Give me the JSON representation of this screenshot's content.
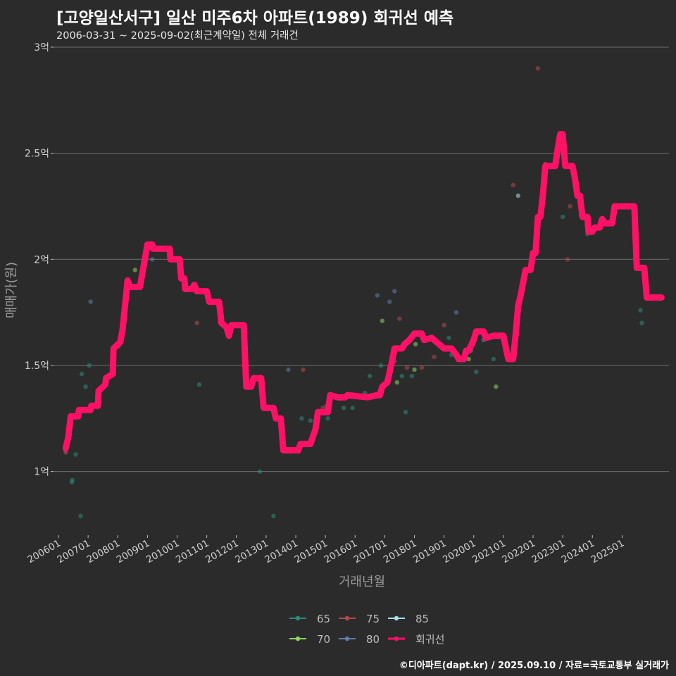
{
  "header": {
    "title": "[고양일산서구] 일산 미주6차 아파트(1989) 회귀선 예측",
    "subtitle": "2006-03-31 ~ 2025-09-02(최근계약일) 전체 거래건"
  },
  "footer": {
    "credit": "©디아파트(dapt.kr) / 2025.09.10 / 자료=국토교통부 실거래가"
  },
  "chart_data": {
    "type": "scatter",
    "xlabel": "거래년월",
    "ylabel": "매매가(원)",
    "ylim": [
      0.7,
      3.0
    ],
    "xlim": [
      "2005-11-01",
      "2026-08-01"
    ],
    "y_ticks": [
      {
        "value": 1.0,
        "label": "1억"
      },
      {
        "value": 1.5,
        "label": "1.5억"
      },
      {
        "value": 2.0,
        "label": "2억"
      },
      {
        "value": 2.5,
        "label": "2.5억"
      },
      {
        "value": 3.0,
        "label": "3억"
      }
    ],
    "x_ticks": [
      {
        "date": "2006-01-01",
        "label": "200601"
      },
      {
        "date": "2007-01-01",
        "label": "200701"
      },
      {
        "date": "2008-01-01",
        "label": "200801"
      },
      {
        "date": "2009-01-01",
        "label": "200901"
      },
      {
        "date": "2010-01-01",
        "label": "201001"
      },
      {
        "date": "2011-01-01",
        "label": "201101"
      },
      {
        "date": "2012-01-01",
        "label": "201201"
      },
      {
        "date": "2013-01-01",
        "label": "201301"
      },
      {
        "date": "2014-01-01",
        "label": "201401"
      },
      {
        "date": "2015-01-01",
        "label": "201501"
      },
      {
        "date": "2016-01-01",
        "label": "201601"
      },
      {
        "date": "2017-01-01",
        "label": "201701"
      },
      {
        "date": "2018-01-01",
        "label": "201801"
      },
      {
        "date": "2019-01-01",
        "label": "201901"
      },
      {
        "date": "2020-01-01",
        "label": "202001"
      },
      {
        "date": "2021-01-01",
        "label": "202101"
      },
      {
        "date": "2022-01-01",
        "label": "202201"
      },
      {
        "date": "2023-01-01",
        "label": "202301"
      },
      {
        "date": "2024-01-01",
        "label": "202401"
      },
      {
        "date": "2025-01-01",
        "label": "202501"
      }
    ],
    "grid": true,
    "legend_position": "bottom",
    "series": [
      {
        "name": "65",
        "color": "#2e8b7a",
        "points": [
          [
            "2006-06-15",
            0.95
          ],
          [
            "2006-06-20",
            0.96
          ],
          [
            "2006-08-01",
            1.08
          ],
          [
            "2006-10-01",
            0.79
          ],
          [
            "2006-10-15",
            1.46
          ],
          [
            "2006-12-01",
            1.4
          ],
          [
            "2007-01-15",
            1.5
          ],
          [
            "2008-01-10",
            1.59
          ],
          [
            "2010-10-01",
            1.41
          ],
          [
            "2012-10-15",
            1.0
          ],
          [
            "2013-04-01",
            0.79
          ],
          [
            "2014-03-15",
            1.25
          ],
          [
            "2014-07-01",
            1.24
          ],
          [
            "2014-10-01",
            1.28
          ],
          [
            "2014-10-10",
            1.27
          ],
          [
            "2015-02-01",
            1.25
          ],
          [
            "2015-08-15",
            1.3
          ],
          [
            "2015-12-01",
            1.3
          ],
          [
            "2016-05-01",
            1.37
          ],
          [
            "2016-07-01",
            1.45
          ],
          [
            "2016-11-15",
            1.5
          ],
          [
            "2017-05-01",
            1.52
          ],
          [
            "2017-08-01",
            1.45
          ],
          [
            "2017-09-15",
            1.28
          ],
          [
            "2017-12-01",
            1.45
          ],
          [
            "2019-03-01",
            1.63
          ],
          [
            "2019-04-01",
            1.55
          ],
          [
            "2019-12-01",
            1.57
          ],
          [
            "2020-02-01",
            1.47
          ],
          [
            "2020-09-01",
            1.53
          ],
          [
            "2023-01-01",
            2.2
          ],
          [
            "2023-11-01",
            2.12
          ],
          [
            "2025-09-01",
            1.7
          ],
          [
            "2025-08-15",
            1.76
          ]
        ]
      },
      {
        "name": "70",
        "color": "#8fd35f",
        "points": [
          [
            "2008-08-01",
            1.95
          ],
          [
            "2016-12-01",
            1.71
          ],
          [
            "2017-06-01",
            1.42
          ],
          [
            "2018-01-01",
            1.48
          ],
          [
            "2018-01-15",
            1.6
          ],
          [
            "2019-11-01",
            1.53
          ],
          [
            "2020-10-01",
            1.4
          ]
        ]
      },
      {
        "name": "75",
        "color": "#b24a4a",
        "points": [
          [
            "2006-03-31",
            1.1
          ],
          [
            "2006-04-01",
            1.09
          ],
          [
            "2010-09-01",
            1.7
          ],
          [
            "2012-05-01",
            1.49
          ],
          [
            "2014-04-01",
            1.48
          ],
          [
            "2014-12-01",
            1.3
          ],
          [
            "2015-01-15",
            1.31
          ],
          [
            "2017-07-01",
            1.72
          ],
          [
            "2017-10-01",
            1.49
          ],
          [
            "2018-04-01",
            1.49
          ],
          [
            "2018-09-01",
            1.54
          ],
          [
            "2019-01-01",
            1.69
          ],
          [
            "2021-05-01",
            2.35
          ],
          [
            "2022-03-01",
            2.9
          ],
          [
            "2022-06-01",
            2.45
          ],
          [
            "2023-03-01",
            2.0
          ],
          [
            "2023-04-01",
            2.25
          ]
        ]
      },
      {
        "name": "80",
        "color": "#5c7fa8",
        "points": [
          [
            "2007-02-01",
            1.8
          ],
          [
            "2009-03-01",
            2.0
          ],
          [
            "2013-10-01",
            1.48
          ],
          [
            "2016-10-01",
            1.83
          ],
          [
            "2017-03-01",
            1.8
          ],
          [
            "2017-05-01",
            1.85
          ],
          [
            "2019-06-01",
            1.75
          ],
          [
            "2020-05-01",
            1.62
          ]
        ]
      },
      {
        "name": "85",
        "color": "#a8dde6",
        "points": [
          [
            "2021-07-01",
            2.3
          ]
        ]
      }
    ],
    "regression": {
      "name": "회귀선",
      "color": "#ff1166",
      "points": [
        [
          "2006-03-31",
          1.11
        ],
        [
          "2006-05-01",
          1.16
        ],
        [
          "2006-06-01",
          1.26
        ],
        [
          "2006-09-01",
          1.26
        ],
        [
          "2006-09-10",
          1.29
        ],
        [
          "2007-02-01",
          1.29
        ],
        [
          "2007-02-10",
          1.31
        ],
        [
          "2007-05-01",
          1.31
        ],
        [
          "2007-05-10",
          1.38
        ],
        [
          "2007-08-01",
          1.41
        ],
        [
          "2007-08-10",
          1.44
        ],
        [
          "2007-11-01",
          1.46
        ],
        [
          "2007-11-10",
          1.58
        ],
        [
          "2008-02-01",
          1.61
        ],
        [
          "2008-03-01",
          1.67
        ],
        [
          "2008-05-01",
          1.9
        ],
        [
          "2008-06-01",
          1.87
        ],
        [
          "2008-10-01",
          1.87
        ],
        [
          "2009-01-01",
          2.07
        ],
        [
          "2009-03-01",
          2.07
        ],
        [
          "2009-03-10",
          2.05
        ],
        [
          "2009-10-01",
          2.05
        ],
        [
          "2009-10-10",
          2.0
        ],
        [
          "2010-02-01",
          2.0
        ],
        [
          "2010-02-20",
          1.91
        ],
        [
          "2010-04-01",
          1.91
        ],
        [
          "2010-04-10",
          1.86
        ],
        [
          "2010-07-01",
          1.86
        ],
        [
          "2010-08-01",
          1.88
        ],
        [
          "2010-09-01",
          1.85
        ],
        [
          "2011-01-01",
          1.85
        ],
        [
          "2011-02-01",
          1.8
        ],
        [
          "2011-06-01",
          1.8
        ],
        [
          "2011-07-01",
          1.7
        ],
        [
          "2011-09-01",
          1.68
        ],
        [
          "2011-10-01",
          1.64
        ],
        [
          "2011-11-01",
          1.69
        ],
        [
          "2012-04-01",
          1.69
        ],
        [
          "2012-05-01",
          1.4
        ],
        [
          "2012-07-01",
          1.4
        ],
        [
          "2012-08-01",
          1.44
        ],
        [
          "2012-11-01",
          1.44
        ],
        [
          "2012-12-01",
          1.3
        ],
        [
          "2013-04-01",
          1.3
        ],
        [
          "2013-05-01",
          1.25
        ],
        [
          "2013-07-01",
          1.25
        ],
        [
          "2013-08-01",
          1.1
        ],
        [
          "2014-02-01",
          1.1
        ],
        [
          "2014-03-01",
          1.13
        ],
        [
          "2014-07-01",
          1.13
        ],
        [
          "2014-09-01",
          1.2
        ],
        [
          "2014-10-01",
          1.28
        ],
        [
          "2015-02-01",
          1.28
        ],
        [
          "2015-03-01",
          1.36
        ],
        [
          "2015-06-01",
          1.35
        ],
        [
          "2015-09-01",
          1.35
        ],
        [
          "2015-10-01",
          1.36
        ],
        [
          "2016-06-01",
          1.35
        ],
        [
          "2016-10-01",
          1.36
        ],
        [
          "2016-11-01",
          1.36
        ],
        [
          "2016-12-01",
          1.4
        ],
        [
          "2017-02-01",
          1.42
        ],
        [
          "2017-04-01",
          1.52
        ],
        [
          "2017-05-01",
          1.58
        ],
        [
          "2017-08-01",
          1.58
        ],
        [
          "2017-09-01",
          1.6
        ],
        [
          "2017-11-01",
          1.62
        ],
        [
          "2018-01-01",
          1.65
        ],
        [
          "2018-04-01",
          1.65
        ],
        [
          "2018-05-01",
          1.62
        ],
        [
          "2018-08-01",
          1.63
        ],
        [
          "2018-11-01",
          1.6
        ],
        [
          "2019-01-01",
          1.58
        ],
        [
          "2019-04-01",
          1.58
        ],
        [
          "2019-06-01",
          1.55
        ],
        [
          "2019-07-01",
          1.53
        ],
        [
          "2019-09-01",
          1.53
        ],
        [
          "2019-10-01",
          1.57
        ],
        [
          "2019-11-01",
          1.57
        ],
        [
          "2020-01-01",
          1.62
        ],
        [
          "2020-02-01",
          1.66
        ],
        [
          "2020-05-01",
          1.66
        ],
        [
          "2020-06-01",
          1.63
        ],
        [
          "2020-09-01",
          1.64
        ],
        [
          "2021-01-01",
          1.64
        ],
        [
          "2021-03-01",
          1.53
        ],
        [
          "2021-05-01",
          1.53
        ],
        [
          "2021-06-01",
          1.65
        ],
        [
          "2021-07-01",
          1.78
        ],
        [
          "2021-08-01",
          1.83
        ],
        [
          "2021-10-01",
          1.95
        ],
        [
          "2021-12-01",
          1.95
        ],
        [
          "2022-01-01",
          2.03
        ],
        [
          "2022-02-01",
          2.03
        ],
        [
          "2022-03-01",
          2.2
        ],
        [
          "2022-04-01",
          2.2
        ],
        [
          "2022-05-01",
          2.3
        ],
        [
          "2022-06-01",
          2.44
        ],
        [
          "2022-10-01",
          2.44
        ],
        [
          "2022-11-01",
          2.52
        ],
        [
          "2022-12-01",
          2.59
        ],
        [
          "2023-01-01",
          2.59
        ],
        [
          "2023-02-01",
          2.44
        ],
        [
          "2023-05-01",
          2.44
        ],
        [
          "2023-06-01",
          2.38
        ],
        [
          "2023-07-01",
          2.3
        ],
        [
          "2023-08-01",
          2.3
        ],
        [
          "2023-09-01",
          2.2
        ],
        [
          "2023-11-01",
          2.2
        ],
        [
          "2023-11-15",
          2.13
        ],
        [
          "2024-01-01",
          2.13
        ],
        [
          "2024-02-01",
          2.15
        ],
        [
          "2024-04-01",
          2.15
        ],
        [
          "2024-05-01",
          2.19
        ],
        [
          "2024-06-01",
          2.17
        ],
        [
          "2024-09-01",
          2.17
        ],
        [
          "2024-10-01",
          2.25
        ],
        [
          "2025-06-01",
          2.25
        ],
        [
          "2025-07-01",
          1.96
        ],
        [
          "2025-10-01",
          1.96
        ],
        [
          "2025-11-01",
          1.82
        ],
        [
          "2026-05-01",
          1.82
        ]
      ]
    },
    "legend": [
      {
        "label": "65",
        "color": "#2e8b7a"
      },
      {
        "label": "75",
        "color": "#b24a4a"
      },
      {
        "label": "85",
        "color": "#a8dde6"
      },
      {
        "label": "70",
        "color": "#8fd35f"
      },
      {
        "label": "80",
        "color": "#5c7fa8"
      },
      {
        "label": "회귀선",
        "color": "#ff1166"
      }
    ]
  }
}
